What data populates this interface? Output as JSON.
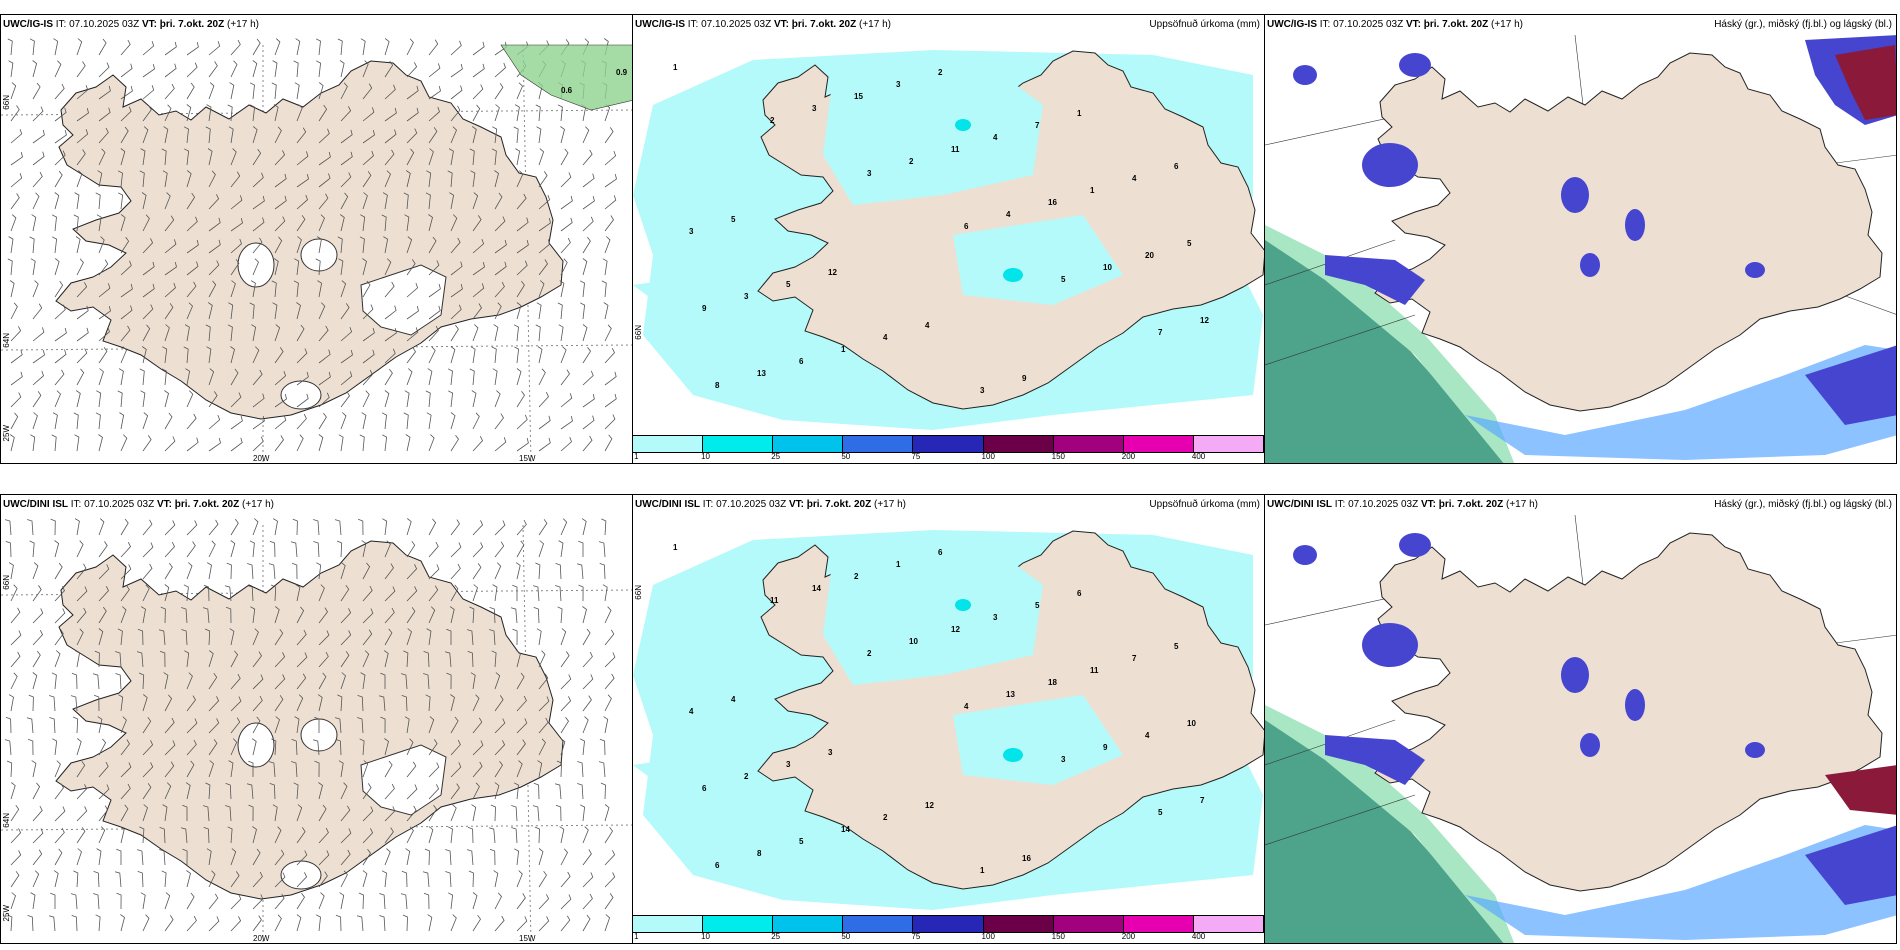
{
  "rows": [
    {
      "model": "UWC/IG-IS",
      "it_label": "IT:",
      "it_value": "07.10.2025 03Z",
      "vt_label": "VT:",
      "vt_value": "þri. 7.okt. 20Z",
      "lead": "(+17 h)",
      "wind_panel": {
        "lat_labels": [
          "66N",
          "64N",
          "25W"
        ],
        "lon_labels": [
          "20W",
          "15W"
        ],
        "contour_values": [
          "0.9",
          "0.6"
        ]
      },
      "precip_panel": {
        "title": "Uppsöfnuð úrkoma (mm)",
        "lat_labels": [
          "66N"
        ],
        "station_values": [
          "1",
          "2",
          "3",
          "6",
          "5",
          "7",
          "8",
          "3",
          "2",
          "4",
          "10",
          "12",
          "13",
          "15",
          "11",
          "16",
          "20",
          "9",
          "6",
          "3",
          "4",
          "1",
          "5",
          "3",
          "1",
          "2",
          "7",
          "4",
          "3",
          "5",
          "4",
          "3",
          "1",
          "6",
          "5",
          "12",
          "4",
          "9"
        ]
      },
      "cloud_panel": {
        "title": "Háský (gr.), miðský (fj.bl.) og lágský (bl.)"
      }
    },
    {
      "model": "UWC/DINI ISL",
      "it_label": "IT:",
      "it_value": "07.10.2025 03Z",
      "vt_label": "VT:",
      "vt_value": "þri. 7.okt. 20Z",
      "lead": "(+17 h)",
      "wind_panel": {
        "lat_labels": [
          "66N",
          "64N",
          "25W"
        ],
        "lon_labels": [
          "20W",
          "15W"
        ],
        "contour_values": []
      },
      "precip_panel": {
        "title": "Uppsöfnuð úrkoma (mm)",
        "lat_labels": [
          "66N"
        ],
        "station_values": [
          "1",
          "11",
          "2",
          "4",
          "3",
          "5",
          "6",
          "14",
          "10",
          "13",
          "9",
          "7",
          "8",
          "2",
          "12",
          "18",
          "4",
          "6",
          "5",
          "1",
          "3",
          "11",
          "10",
          "2",
          "14",
          "6",
          "5",
          "7",
          "4",
          "3",
          "2",
          "1",
          "6",
          "5",
          "4",
          "3",
          "12",
          "16"
        ]
      },
      "cloud_panel": {
        "title": "Háský (gr.), miðský (fj.bl.) og lágský (bl.)"
      }
    }
  ],
  "colorbar": {
    "colors": [
      "#b4fafa",
      "#00ebeb",
      "#00c3eb",
      "#2e6de6",
      "#2727b7",
      "#6b0048",
      "#a1007f",
      "#e600b0",
      "#f5aaf5"
    ],
    "ticks": [
      "1",
      "10",
      "25",
      "50",
      "75",
      "100",
      "150",
      "200",
      "400"
    ]
  },
  "colors": {
    "land": "#ede0d2",
    "precip_light": "#b4fafa",
    "precip_mid": "#00e4ea",
    "cloud_high": "#2e9476",
    "cloud_mid": "#4545d0",
    "cloud_low": "#5aa8ff",
    "cloud_top": "#8b1a3a"
  }
}
